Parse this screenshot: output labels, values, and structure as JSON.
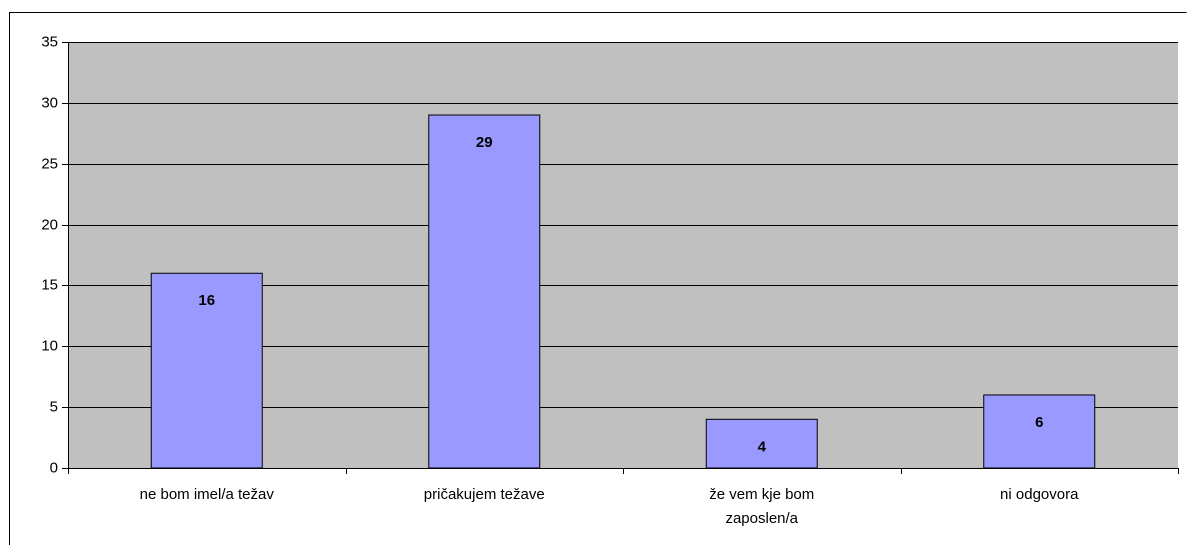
{
  "chart_data": {
    "type": "bar",
    "categories": [
      "ne bom imel/a težav",
      "pričakujem težave",
      "že vem kje bom zaposlen/a",
      "ni odgovora"
    ],
    "values": [
      16,
      29,
      4,
      6
    ],
    "color": "#9999ff",
    "plot_background": "#c0c0c0",
    "ylim": [
      0,
      35
    ],
    "yticks": [
      0,
      5,
      10,
      15,
      20,
      25,
      30,
      35
    ],
    "grid": true
  }
}
